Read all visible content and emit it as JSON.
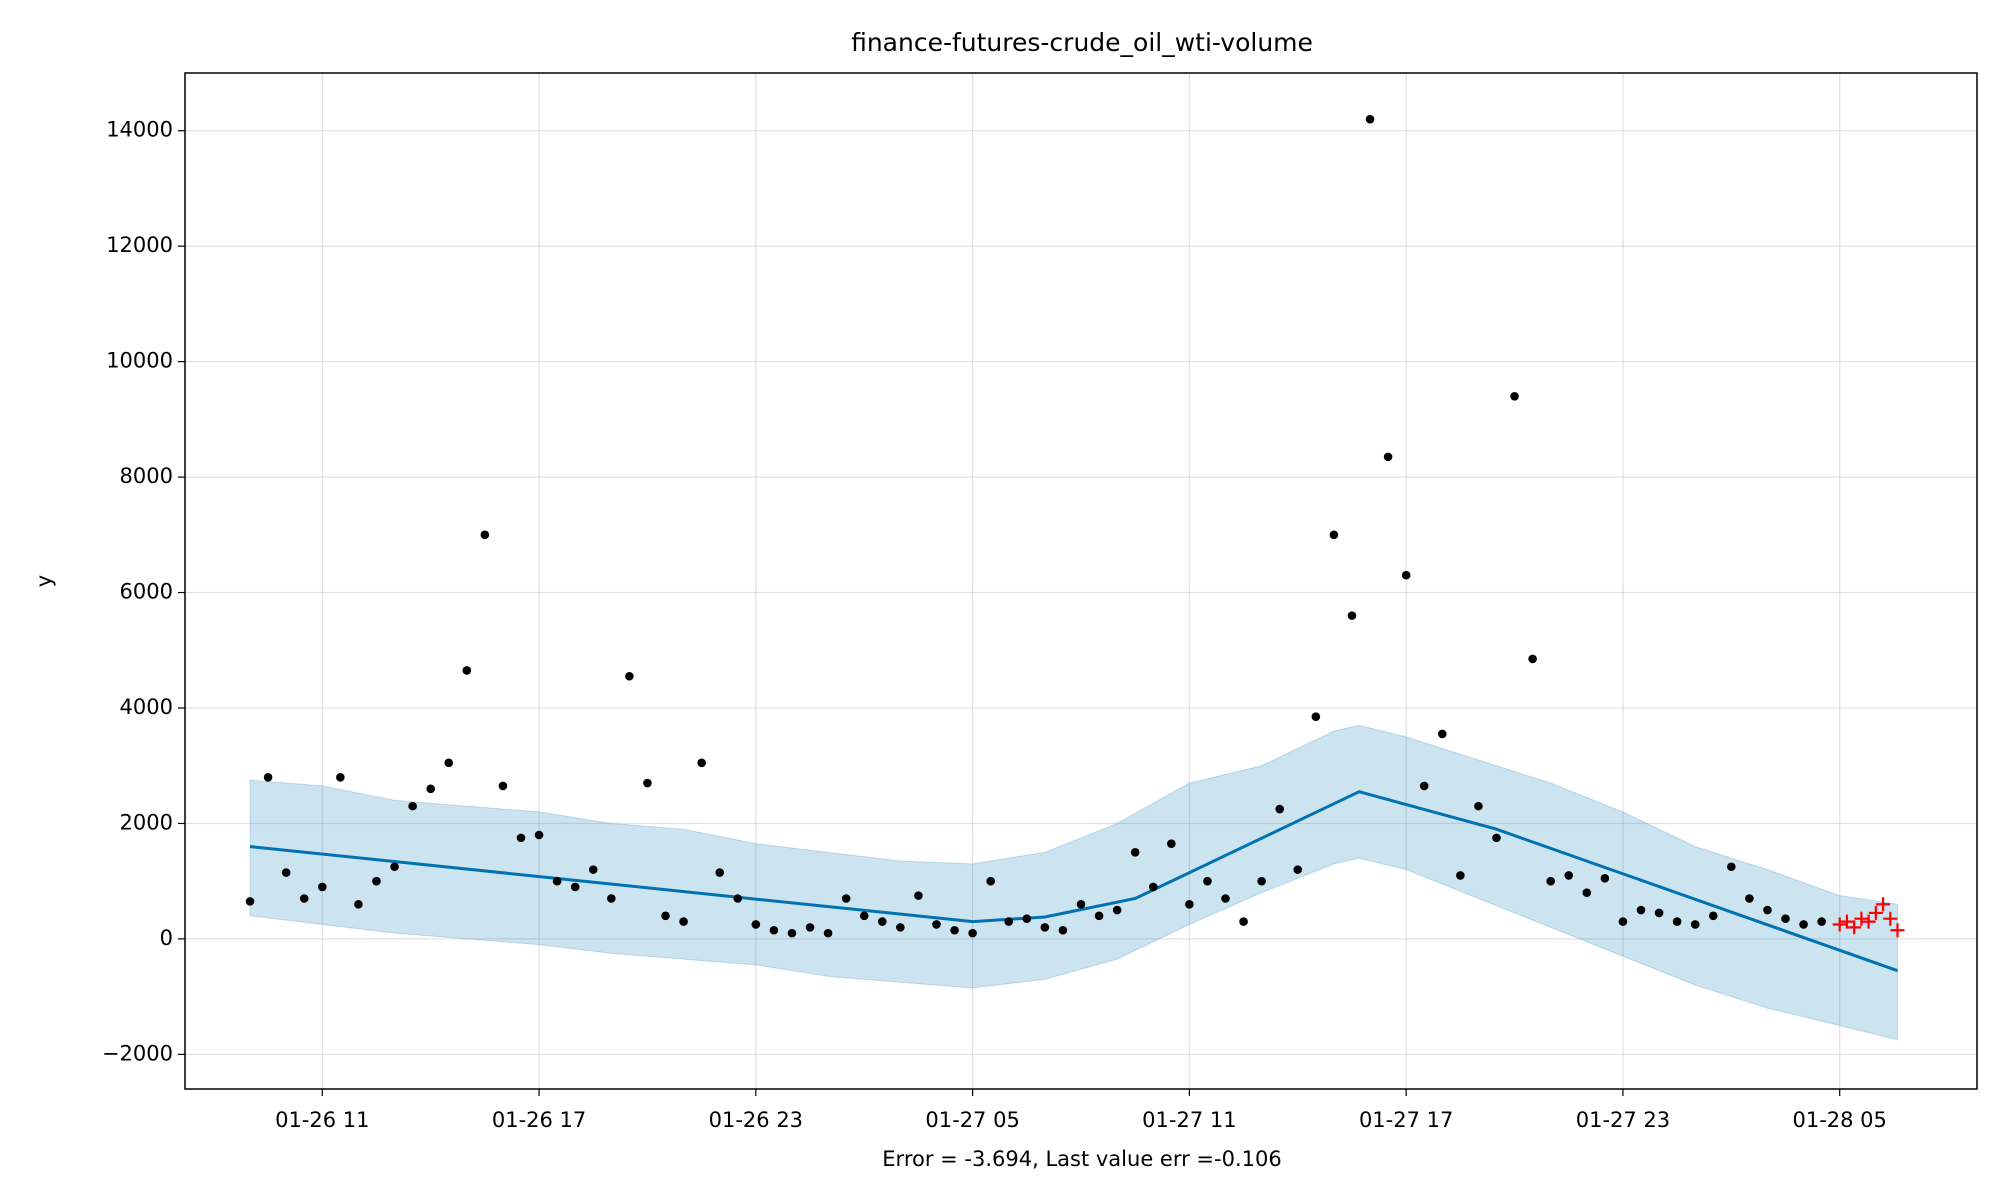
{
  "chart_data": {
    "type": "scatter",
    "title": "finance-futures-crude_oil_wti-volume",
    "ylabel": "y",
    "xlabel": "Error = -3.694, Last value err =-0.106",
    "xlim": [
      7.2,
      56.8
    ],
    "ylim": [
      -2600,
      15000
    ],
    "xticks": [
      {
        "value": 11,
        "label": "01-26 11"
      },
      {
        "value": 17,
        "label": "01-26 17"
      },
      {
        "value": 23,
        "label": "01-26 23"
      },
      {
        "value": 29,
        "label": "01-27 05"
      },
      {
        "value": 35,
        "label": "01-27 11"
      },
      {
        "value": 41,
        "label": "01-27 17"
      },
      {
        "value": 47,
        "label": "01-27 23"
      },
      {
        "value": 53,
        "label": "01-28 05"
      }
    ],
    "yticks": [
      {
        "value": -2000,
        "label": "−2000"
      },
      0,
      2000,
      4000,
      6000,
      8000,
      10000,
      12000,
      14000
    ],
    "grid": true,
    "band": {
      "color": "#0072B2",
      "x": [
        9,
        11,
        13,
        15,
        17,
        19,
        21,
        23,
        25,
        27,
        29,
        31,
        33,
        35,
        37,
        39,
        39.7,
        41,
        43,
        45,
        47,
        49,
        51,
        53,
        54.6
      ],
      "upper": [
        2750,
        2650,
        2400,
        2300,
        2200,
        2000,
        1900,
        1650,
        1500,
        1350,
        1300,
        1500,
        2000,
        2700,
        3000,
        3600,
        3700,
        3500,
        3100,
        2700,
        2200,
        1600,
        1200,
        750,
        600
      ],
      "lower": [
        400,
        250,
        100,
        0,
        -100,
        -250,
        -350,
        -450,
        -650,
        -750,
        -850,
        -700,
        -350,
        250,
        800,
        1300,
        1400,
        1200,
        700,
        200,
        -300,
        -800,
        -1200,
        -1500,
        -1750
      ]
    },
    "trend": {
      "color": "#0072B2",
      "x": [
        9,
        29,
        31,
        33.5,
        39.7,
        43.5,
        54.6
      ],
      "values": [
        1600,
        300,
        380,
        700,
        2550,
        1900,
        -550
      ]
    },
    "series": [
      {
        "color": "#000000",
        "marker": "dot",
        "x": [
          9.0,
          9.5,
          10.0,
          10.5,
          11.0,
          11.5,
          12.0,
          12.5,
          13.0,
          13.5,
          14.0,
          14.5,
          15.0,
          15.5,
          16.0,
          16.5,
          17.0,
          17.5,
          18.0,
          18.5,
          19.0,
          19.5,
          20.0,
          20.5,
          21.0,
          21.5,
          22.0,
          22.5,
          23.0,
          23.5,
          24.0,
          24.5,
          25.0,
          25.5,
          26.0,
          26.5,
          27.0,
          27.5,
          28.0,
          28.5,
          29.0,
          29.5,
          30.0,
          30.5,
          31.0,
          31.5,
          32.0,
          32.5,
          33.0,
          33.5,
          34.0,
          34.5,
          35.0,
          35.5,
          36.0,
          36.5,
          37.0,
          37.5,
          38.0,
          38.5,
          39.0,
          39.5,
          40.0,
          40.5,
          41.0,
          41.5,
          42.0,
          42.5,
          43.0,
          43.5,
          44.0,
          44.5,
          45.0,
          45.5,
          46.0,
          46.5,
          47.0,
          47.5,
          48.0,
          48.5,
          49.0,
          49.5,
          50.0,
          50.5,
          51.0,
          51.5,
          52.0,
          52.5
        ],
        "values": [
          650,
          2800,
          1150,
          700,
          900,
          2800,
          600,
          1000,
          1250,
          2300,
          2600,
          3050,
          4650,
          7000,
          2650,
          1750,
          1800,
          1000,
          900,
          1200,
          700,
          4550,
          2700,
          400,
          300,
          3050,
          1150,
          700,
          250,
          150,
          100,
          200,
          100,
          700,
          400,
          300,
          200,
          750,
          250,
          150,
          100,
          1000,
          300,
          350,
          200,
          150,
          600,
          400,
          500,
          1500,
          900,
          1650,
          600,
          1000,
          700,
          300,
          1000,
          2250,
          1200,
          3850,
          7000,
          5600,
          14200,
          8350,
          6300,
          2650,
          3550,
          1100,
          2300,
          1750,
          9400,
          4850,
          1000,
          1100,
          800,
          1050,
          300,
          500,
          450,
          300,
          250,
          400,
          1250,
          700,
          500,
          350,
          250,
          300
        ]
      },
      {
        "color": "#ff0000",
        "marker": "plus",
        "x": [
          53.0,
          53.2,
          53.4,
          53.6,
          53.8,
          54.0,
          54.2,
          54.4,
          54.6
        ],
        "values": [
          250,
          300,
          200,
          350,
          300,
          450,
          600,
          350,
          150
        ]
      }
    ]
  }
}
